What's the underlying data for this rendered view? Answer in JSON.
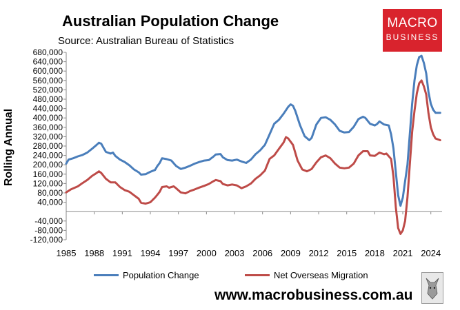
{
  "brand": {
    "logo_line1": "MACRO",
    "logo_line2": "BUSINESS",
    "website": "www.macrobusiness.com.au",
    "accent": "#d9232d"
  },
  "chart_data": {
    "type": "line",
    "title": "Australian Population Change",
    "subtitle": "Source: Australian Bureau of Statistics",
    "ylabel": "Rolling Annual",
    "xlabel": "",
    "xlim": [
      1985,
      2025.2
    ],
    "ylim": [
      -120000,
      680000
    ],
    "yticks": [
      680000,
      640000,
      600000,
      560000,
      520000,
      480000,
      440000,
      400000,
      360000,
      320000,
      280000,
      240000,
      200000,
      160000,
      120000,
      80000,
      40000,
      -40000,
      -80000,
      -120000
    ],
    "ytick_labels": [
      "680,000",
      "640,000",
      "600,000",
      "560,000",
      "520,000",
      "480,000",
      "440,000",
      "400,000",
      "360,000",
      "320,000",
      "280,000",
      "240,000",
      "200,000",
      "160,000",
      "120,000",
      "80,000",
      "40,000",
      "-40,000",
      "-80,000",
      "-120,000"
    ],
    "xticks": [
      1985,
      1988,
      1991,
      1994,
      1997,
      2000,
      2003,
      2006,
      2009,
      2012,
      2015,
      2018,
      2021,
      2024
    ],
    "xtick_labels": [
      "1985",
      "1988",
      "1991",
      "1994",
      "1997",
      "2000",
      "2003",
      "2006",
      "2009",
      "2012",
      "2015",
      "2018",
      "2021",
      "2024"
    ],
    "legend_position": "bottom",
    "series": [
      {
        "name": "Population Change",
        "color": "#4a7ebb",
        "points": [
          [
            1985.0,
            205000
          ],
          [
            1985.25,
            222000
          ],
          [
            1985.75,
            228000
          ],
          [
            1986.25,
            236000
          ],
          [
            1986.75,
            242000
          ],
          [
            1987.25,
            252000
          ],
          [
            1987.75,
            268000
          ],
          [
            1988.25,
            285000
          ],
          [
            1988.5,
            294000
          ],
          [
            1988.75,
            290000
          ],
          [
            1989.0,
            272000
          ],
          [
            1989.25,
            255000
          ],
          [
            1989.75,
            248000
          ],
          [
            1990.0,
            252000
          ],
          [
            1990.25,
            238000
          ],
          [
            1990.75,
            222000
          ],
          [
            1991.25,
            212000
          ],
          [
            1991.75,
            198000
          ],
          [
            1992.25,
            180000
          ],
          [
            1992.75,
            168000
          ],
          [
            1993.0,
            158000
          ],
          [
            1993.5,
            160000
          ],
          [
            1994.0,
            170000
          ],
          [
            1994.5,
            178000
          ],
          [
            1994.75,
            195000
          ],
          [
            1995.0,
            208000
          ],
          [
            1995.25,
            228000
          ],
          [
            1995.75,
            224000
          ],
          [
            1996.25,
            218000
          ],
          [
            1996.75,
            195000
          ],
          [
            1997.25,
            182000
          ],
          [
            1997.75,
            188000
          ],
          [
            1998.25,
            196000
          ],
          [
            1998.75,
            205000
          ],
          [
            1999.25,
            212000
          ],
          [
            1999.75,
            218000
          ],
          [
            2000.25,
            220000
          ],
          [
            2000.75,
            235000
          ],
          [
            2001.0,
            244000
          ],
          [
            2001.5,
            246000
          ],
          [
            2001.75,
            232000
          ],
          [
            2002.25,
            220000
          ],
          [
            2002.75,
            218000
          ],
          [
            2003.25,
            222000
          ],
          [
            2003.75,
            214000
          ],
          [
            2004.25,
            208000
          ],
          [
            2004.75,
            222000
          ],
          [
            2005.25,
            245000
          ],
          [
            2005.75,
            262000
          ],
          [
            2006.25,
            285000
          ],
          [
            2006.75,
            330000
          ],
          [
            2007.25,
            375000
          ],
          [
            2007.75,
            392000
          ],
          [
            2008.25,
            418000
          ],
          [
            2008.75,
            448000
          ],
          [
            2009.0,
            458000
          ],
          [
            2009.25,
            452000
          ],
          [
            2009.5,
            430000
          ],
          [
            2010.0,
            370000
          ],
          [
            2010.5,
            322000
          ],
          [
            2011.0,
            305000
          ],
          [
            2011.25,
            315000
          ],
          [
            2011.75,
            372000
          ],
          [
            2012.25,
            400000
          ],
          [
            2012.75,
            403000
          ],
          [
            2013.25,
            392000
          ],
          [
            2013.75,
            372000
          ],
          [
            2014.25,
            345000
          ],
          [
            2014.75,
            338000
          ],
          [
            2015.25,
            340000
          ],
          [
            2015.75,
            362000
          ],
          [
            2016.25,
            395000
          ],
          [
            2016.75,
            405000
          ],
          [
            2017.0,
            400000
          ],
          [
            2017.5,
            375000
          ],
          [
            2018.0,
            368000
          ],
          [
            2018.25,
            374000
          ],
          [
            2018.5,
            385000
          ],
          [
            2019.0,
            372000
          ],
          [
            2019.5,
            368000
          ],
          [
            2019.75,
            330000
          ],
          [
            2020.0,
            270000
          ],
          [
            2020.25,
            170000
          ],
          [
            2020.5,
            70000
          ],
          [
            2020.75,
            25000
          ],
          [
            2021.0,
            60000
          ],
          [
            2021.25,
            130000
          ],
          [
            2021.5,
            200000
          ],
          [
            2021.75,
            330000
          ],
          [
            2022.0,
            460000
          ],
          [
            2022.25,
            560000
          ],
          [
            2022.5,
            625000
          ],
          [
            2022.75,
            660000
          ],
          [
            2023.0,
            665000
          ],
          [
            2023.25,
            635000
          ],
          [
            2023.5,
            590000
          ],
          [
            2023.75,
            510000
          ],
          [
            2024.0,
            460000
          ],
          [
            2024.25,
            435000
          ],
          [
            2024.5,
            422000
          ],
          [
            2025.0,
            422000
          ]
        ]
      },
      {
        "name": "Net Overseas Migration",
        "color": "#be4b48",
        "points": [
          [
            1985.0,
            82000
          ],
          [
            1985.5,
            95000
          ],
          [
            1986.25,
            108000
          ],
          [
            1986.75,
            122000
          ],
          [
            1987.25,
            135000
          ],
          [
            1987.75,
            152000
          ],
          [
            1988.25,
            165000
          ],
          [
            1988.5,
            172000
          ],
          [
            1988.75,
            165000
          ],
          [
            1989.25,
            140000
          ],
          [
            1989.75,
            125000
          ],
          [
            1990.25,
            125000
          ],
          [
            1990.75,
            105000
          ],
          [
            1991.25,
            92000
          ],
          [
            1991.75,
            85000
          ],
          [
            1992.25,
            70000
          ],
          [
            1992.75,
            55000
          ],
          [
            1993.0,
            38000
          ],
          [
            1993.5,
            34000
          ],
          [
            1994.0,
            40000
          ],
          [
            1994.5,
            60000
          ],
          [
            1994.75,
            72000
          ],
          [
            1995.0,
            85000
          ],
          [
            1995.25,
            105000
          ],
          [
            1995.75,
            108000
          ],
          [
            1996.0,
            102000
          ],
          [
            1996.5,
            108000
          ],
          [
            1996.75,
            100000
          ],
          [
            1997.25,
            82000
          ],
          [
            1997.75,
            78000
          ],
          [
            1998.25,
            88000
          ],
          [
            1998.75,
            95000
          ],
          [
            1999.25,
            103000
          ],
          [
            1999.75,
            110000
          ],
          [
            2000.25,
            118000
          ],
          [
            2000.75,
            130000
          ],
          [
            2001.0,
            135000
          ],
          [
            2001.5,
            130000
          ],
          [
            2001.75,
            118000
          ],
          [
            2002.25,
            112000
          ],
          [
            2002.75,
            116000
          ],
          [
            2003.25,
            112000
          ],
          [
            2003.75,
            100000
          ],
          [
            2004.25,
            108000
          ],
          [
            2004.75,
            120000
          ],
          [
            2005.25,
            140000
          ],
          [
            2005.75,
            155000
          ],
          [
            2006.25,
            175000
          ],
          [
            2006.75,
            225000
          ],
          [
            2007.25,
            240000
          ],
          [
            2007.75,
            268000
          ],
          [
            2008.25,
            295000
          ],
          [
            2008.5,
            318000
          ],
          [
            2008.75,
            312000
          ],
          [
            2009.25,
            285000
          ],
          [
            2009.75,
            218000
          ],
          [
            2010.25,
            180000
          ],
          [
            2010.75,
            172000
          ],
          [
            2011.25,
            182000
          ],
          [
            2011.75,
            210000
          ],
          [
            2012.25,
            232000
          ],
          [
            2012.75,
            240000
          ],
          [
            2013.25,
            228000
          ],
          [
            2013.75,
            205000
          ],
          [
            2014.25,
            188000
          ],
          [
            2014.75,
            185000
          ],
          [
            2015.25,
            188000
          ],
          [
            2015.75,
            205000
          ],
          [
            2016.25,
            240000
          ],
          [
            2016.75,
            258000
          ],
          [
            2017.25,
            258000
          ],
          [
            2017.5,
            240000
          ],
          [
            2018.0,
            238000
          ],
          [
            2018.5,
            252000
          ],
          [
            2019.0,
            245000
          ],
          [
            2019.25,
            248000
          ],
          [
            2019.75,
            225000
          ],
          [
            2020.0,
            150000
          ],
          [
            2020.25,
            20000
          ],
          [
            2020.5,
            -70000
          ],
          [
            2020.75,
            -95000
          ],
          [
            2021.0,
            -80000
          ],
          [
            2021.25,
            -40000
          ],
          [
            2021.5,
            60000
          ],
          [
            2021.75,
            200000
          ],
          [
            2022.0,
            340000
          ],
          [
            2022.25,
            430000
          ],
          [
            2022.5,
            505000
          ],
          [
            2022.75,
            548000
          ],
          [
            2023.0,
            560000
          ],
          [
            2023.25,
            535000
          ],
          [
            2023.5,
            500000
          ],
          [
            2023.75,
            420000
          ],
          [
            2024.0,
            360000
          ],
          [
            2024.25,
            330000
          ],
          [
            2024.5,
            312000
          ],
          [
            2025.0,
            305000
          ]
        ]
      }
    ]
  }
}
